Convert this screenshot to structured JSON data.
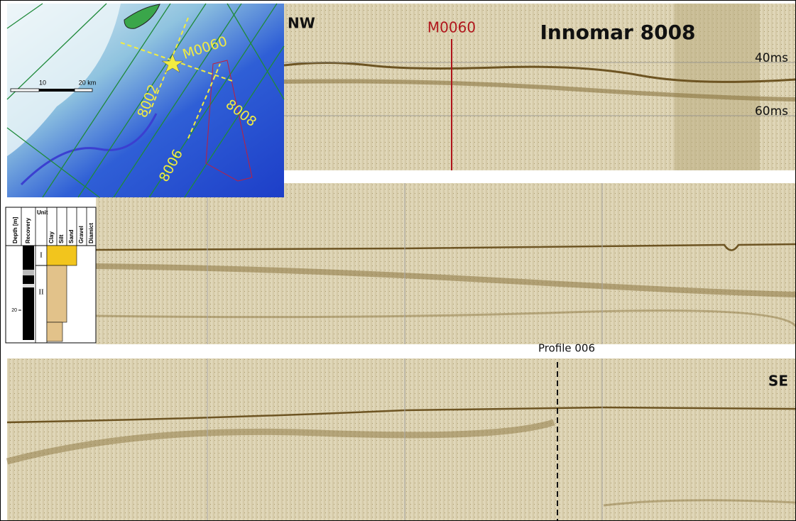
{
  "profile": {
    "title": "Innomar 8008",
    "left_label": "NW",
    "right_label": "SE",
    "site_label": "M0060",
    "time_labels": [
      "40ms",
      "60ms"
    ],
    "crossing_label": "Profile 006"
  },
  "map": {
    "site": "M0060",
    "lines": [
      "8002",
      "8008",
      "8006"
    ],
    "scale_labels": [
      "10",
      "20 km"
    ]
  },
  "core_log": {
    "columns": [
      "Depth [m]",
      "Recovery",
      "Unit",
      "Clay",
      "Silt",
      "Sand",
      "Gravel",
      "Diamict"
    ],
    "units": [
      "I",
      "II"
    ],
    "depth_label": "20"
  }
}
